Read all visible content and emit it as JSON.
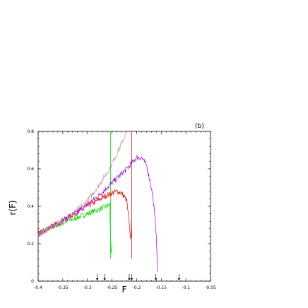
{
  "chart_data": {
    "type": "line",
    "panel_label": "(b)",
    "title": "",
    "xlabel": "F",
    "ylabel": "r(F)",
    "xlim": [
      -0.4,
      -0.05
    ],
    "ylim": [
      0,
      0.8
    ],
    "grid": false,
    "legend": "none",
    "xticks": [
      -0.4,
      -0.35,
      -0.3,
      -0.25,
      -0.2,
      -0.15,
      -0.1,
      -0.05
    ],
    "xtick_labels": [
      "-0.4",
      "-0.35",
      "-0.3",
      "-0.25",
      "-0.2",
      "-0.15",
      "-0.1",
      "-0.05"
    ],
    "yticks": [
      0,
      0.2,
      0.4,
      0.6,
      0.8
    ],
    "ytick_labels": [
      "0",
      "0.2",
      "0.4",
      "0.6",
      "0.8"
    ],
    "arrow_markers_x": [
      -0.28,
      -0.265,
      -0.215,
      -0.21,
      -0.161,
      -0.114
    ],
    "series": [
      {
        "color": "#00dd00",
        "x": [
          -0.4,
          -0.38,
          -0.36,
          -0.34,
          -0.32,
          -0.3,
          -0.28,
          -0.27,
          -0.26,
          -0.255,
          -0.252,
          -0.25
        ],
        "y": [
          0.25,
          0.28,
          0.3,
          0.32,
          0.34,
          0.36,
          0.38,
          0.39,
          0.4,
          0.41,
          0.15,
          0.2
        ],
        "spike": {
          "x": -0.253,
          "y_top": 0.8,
          "y_bottom": 0.12
        }
      },
      {
        "color": "#ee0000",
        "x": [
          -0.4,
          -0.38,
          -0.36,
          -0.34,
          -0.32,
          -0.3,
          -0.28,
          -0.26,
          -0.24,
          -0.23,
          -0.22,
          -0.215,
          -0.212,
          -0.21
        ],
        "y": [
          0.25,
          0.28,
          0.31,
          0.34,
          0.37,
          0.4,
          0.43,
          0.46,
          0.48,
          0.47,
          0.43,
          0.3,
          0.22,
          0.32
        ],
        "spike": {
          "x": -0.21,
          "y_top": 0.8,
          "y_bottom": 0.12
        }
      },
      {
        "color": "#9900dd",
        "x": [
          -0.4,
          -0.38,
          -0.36,
          -0.34,
          -0.32,
          -0.3,
          -0.28,
          -0.26,
          -0.24,
          -0.22,
          -0.21,
          -0.2,
          -0.19,
          -0.18,
          -0.17,
          -0.165,
          -0.16,
          -0.158
        ],
        "y": [
          0.25,
          0.28,
          0.31,
          0.34,
          0.37,
          0.41,
          0.45,
          0.5,
          0.55,
          0.6,
          0.63,
          0.66,
          0.66,
          0.62,
          0.5,
          0.4,
          0.25,
          0.05
        ]
      },
      {
        "color": "#c09898",
        "x": [
          -0.4,
          -0.38,
          -0.36,
          -0.34,
          -0.32,
          -0.3,
          -0.28,
          -0.26,
          -0.24,
          -0.23,
          -0.22
        ],
        "y": [
          0.25,
          0.28,
          0.31,
          0.34,
          0.38,
          0.43,
          0.5,
          0.58,
          0.68,
          0.74,
          0.8
        ]
      }
    ]
  }
}
